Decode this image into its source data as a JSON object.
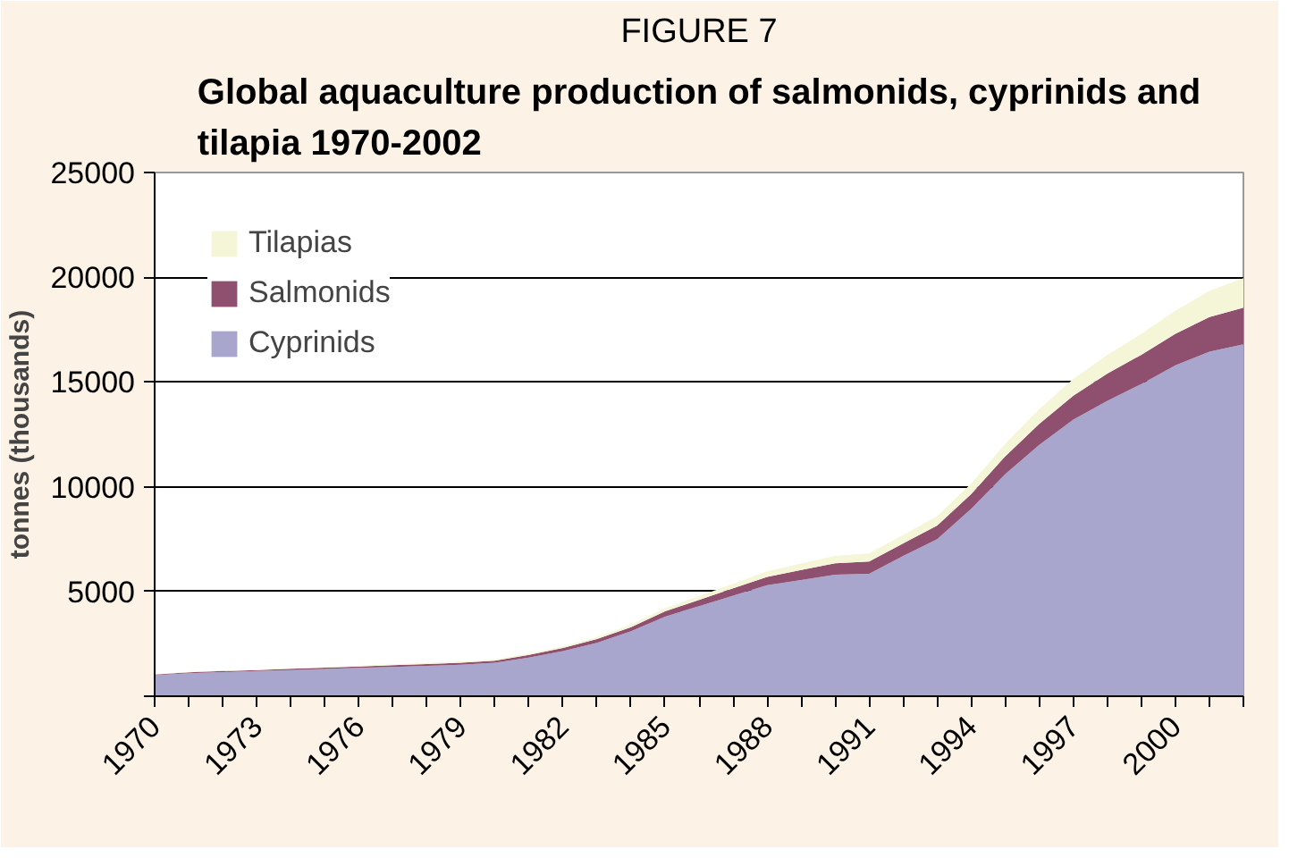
{
  "chart_data": {
    "type": "area",
    "stacked": true,
    "title": "FIGURE 7",
    "subtitle": "Global aquaculture production of salmonids, cyprinids and tilapia 1970-2002",
    "ylabel": "tonnes (thousands)",
    "x": [
      1970,
      1971,
      1972,
      1973,
      1974,
      1975,
      1976,
      1977,
      1978,
      1979,
      1980,
      1981,
      1982,
      1983,
      1984,
      1985,
      1986,
      1987,
      1988,
      1989,
      1990,
      1991,
      1992,
      1993,
      1994,
      1995,
      1996,
      1997,
      1998,
      1999,
      2000,
      2001,
      2002
    ],
    "series": [
      {
        "name": "Cyprinids",
        "color": "#a8a6cc",
        "values": [
          1000,
          1100,
          1150,
          1200,
          1250,
          1300,
          1350,
          1400,
          1450,
          1500,
          1600,
          1850,
          2150,
          2550,
          3100,
          3800,
          4300,
          4800,
          5300,
          5550,
          5800,
          5850,
          6700,
          7500,
          8950,
          10600,
          12000,
          13200,
          14100,
          14900,
          15800,
          16450,
          16800
        ]
      },
      {
        "name": "Salmonids",
        "color": "#8f4f6f",
        "values": [
          30,
          40,
          50,
          50,
          60,
          60,
          70,
          80,
          90,
          100,
          100,
          120,
          150,
          180,
          200,
          250,
          300,
          350,
          400,
          480,
          550,
          580,
          600,
          650,
          700,
          850,
          1000,
          1150,
          1300,
          1400,
          1500,
          1650,
          1750
        ]
      },
      {
        "name": "Tilapias",
        "color": "#f5f5d8",
        "values": [
          20,
          20,
          20,
          30,
          30,
          30,
          40,
          40,
          50,
          50,
          60,
          70,
          80,
          100,
          120,
          150,
          180,
          220,
          260,
          300,
          350,
          380,
          400,
          450,
          500,
          600,
          700,
          800,
          900,
          1000,
          1100,
          1250,
          1400
        ]
      }
    ],
    "xlim": [
      1970,
      2002
    ],
    "xticks": [
      1970,
      {
        "value": 1971,
        "label": null
      },
      {
        "value": 1972,
        "label": null
      },
      1973,
      {
        "value": 1974,
        "label": null
      },
      {
        "value": 1975,
        "label": null
      },
      1976,
      {
        "value": 1977,
        "label": null
      },
      {
        "value": 1978,
        "label": null
      },
      1979,
      {
        "value": 1980,
        "label": null
      },
      {
        "value": 1981,
        "label": null
      },
      1982,
      {
        "value": 1983,
        "label": null
      },
      {
        "value": 1984,
        "label": null
      },
      1985,
      {
        "value": 1986,
        "label": null
      },
      {
        "value": 1987,
        "label": null
      },
      1988,
      {
        "value": 1989,
        "label": null
      },
      {
        "value": 1990,
        "label": null
      },
      1991,
      {
        "value": 1992,
        "label": null
      },
      {
        "value": 1993,
        "label": null
      },
      1994,
      {
        "value": 1995,
        "label": null
      },
      {
        "value": 1996,
        "label": null
      },
      1997,
      {
        "value": 1998,
        "label": null
      },
      {
        "value": 1999,
        "label": null
      },
      2000,
      {
        "value": 2001,
        "label": null
      },
      {
        "value": 2002,
        "label": null
      }
    ],
    "ylim": [
      0,
      25000
    ],
    "yticks": [
      {
        "value": 0,
        "label": null
      },
      5000,
      10000,
      15000,
      20000,
      25000
    ],
    "grid": "y",
    "legend": "top left"
  }
}
